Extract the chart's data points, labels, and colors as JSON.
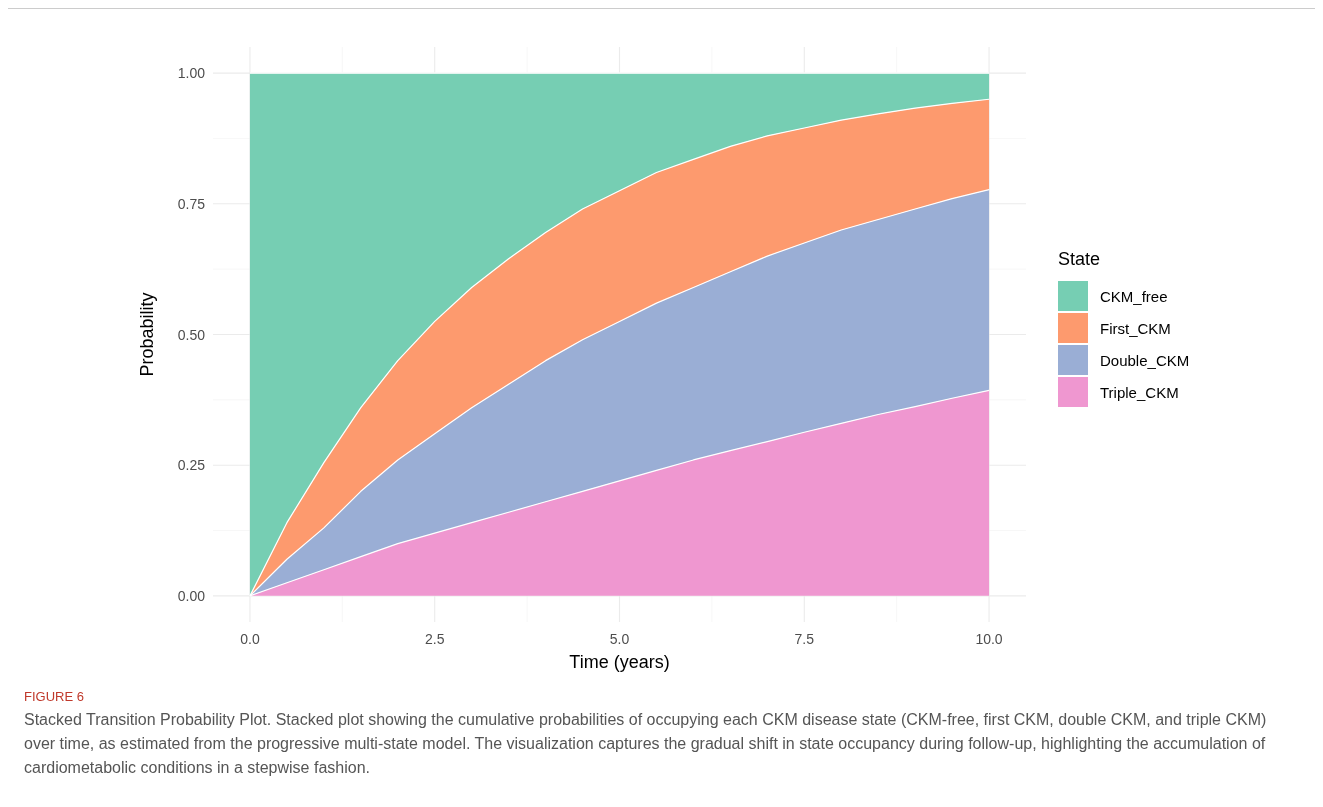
{
  "chart_data": {
    "type": "area",
    "stacked": true,
    "xlabel": "Time (years)",
    "ylabel": "Probability",
    "legend_title": "State",
    "legend": "right",
    "grid": true,
    "x": [
      0,
      0.5,
      1,
      1.5,
      2,
      2.5,
      3,
      3.5,
      4,
      4.5,
      5,
      5.5,
      6,
      6.5,
      7,
      7.5,
      8,
      8.5,
      9,
      9.5,
      10
    ],
    "series": [
      {
        "name": "Triple_CKM",
        "color": "#ef97d0",
        "values": [
          0,
          0.025,
          0.05,
          0.075,
          0.1,
          0.12,
          0.14,
          0.16,
          0.18,
          0.2,
          0.22,
          0.24,
          0.26,
          0.278,
          0.295,
          0.313,
          0.33,
          0.347,
          0.362,
          0.378,
          0.393
        ]
      },
      {
        "name": "Double_CKM",
        "color": "#9aaed5",
        "values": [
          0,
          0.045,
          0.08,
          0.125,
          0.16,
          0.19,
          0.22,
          0.245,
          0.27,
          0.29,
          0.305,
          0.32,
          0.33,
          0.342,
          0.355,
          0.362,
          0.37,
          0.373,
          0.378,
          0.382,
          0.384
        ]
      },
      {
        "name": "First_CKM",
        "color": "#fd9a6e",
        "values": [
          0,
          0.07,
          0.125,
          0.16,
          0.19,
          0.215,
          0.23,
          0.24,
          0.245,
          0.25,
          0.25,
          0.25,
          0.245,
          0.24,
          0.23,
          0.22,
          0.21,
          0.202,
          0.193,
          0.182,
          0.173
        ]
      },
      {
        "name": "CKM_free",
        "color": "#76ceb3",
        "values": [
          1,
          0.86,
          0.745,
          0.64,
          0.55,
          0.475,
          0.41,
          0.355,
          0.305,
          0.26,
          0.225,
          0.19,
          0.165,
          0.14,
          0.12,
          0.105,
          0.09,
          0.078,
          0.067,
          0.058,
          0.05
        ]
      }
    ],
    "xlim": [
      -0.5,
      10.5
    ],
    "xticks": [
      {
        "value": 0,
        "label": "0.0"
      },
      {
        "value": 2.5,
        "label": "2.5"
      },
      {
        "value": 5,
        "label": "5.0"
      },
      {
        "value": 7.5,
        "label": "7.5"
      },
      {
        "value": 10,
        "label": "10.0"
      }
    ],
    "ylim": [
      -0.05,
      1.05
    ],
    "yticks": [
      {
        "value": 0,
        "label": "0.00"
      },
      {
        "value": 0.25,
        "label": "0.25"
      },
      {
        "value": 0.5,
        "label": "0.50"
      },
      {
        "value": 0.75,
        "label": "0.75"
      },
      {
        "value": 1,
        "label": "1.00"
      }
    ],
    "annotations": [
      "FIGURE 6",
      "Stacked Transition Probability Plot. Stacked plot showing the cumulative probabilities of occupying each CKM disease state (CKM-free, first CKM, double CKM, and triple CKM) over time, as estimated from the progressive multi-state model. The visualization captures the gradual shift in state occupancy during follow-up, highlighting the accumulation of cardiometabolic conditions in a stepwise fashion."
    ]
  }
}
